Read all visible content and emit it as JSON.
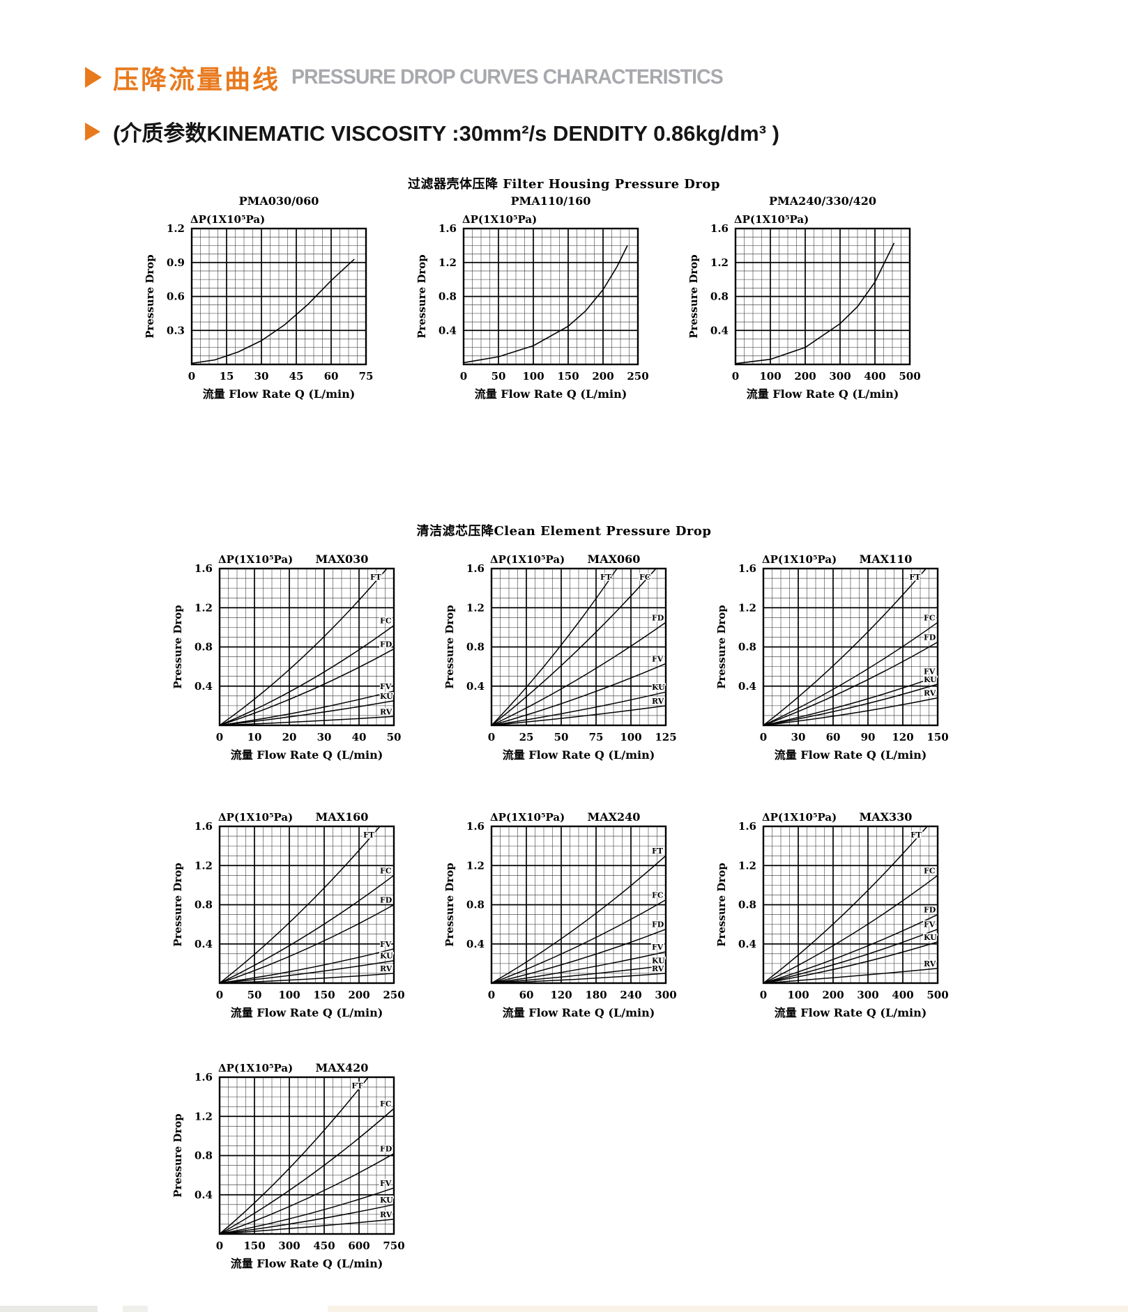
{
  "page": {
    "header": {
      "title_cn": "压降流量曲线",
      "title_en": "PRESSURE DROP CURVES CHARACTERISTICS"
    },
    "subtitle": "(介质参数KINEMATIC VISCOSITY :30mm²/s DENDITY 0.86kg/dm³ )",
    "section1_title": "过滤器壳体压降 Filter Housing Pressure Drop",
    "section2_title": "清洁滤芯压降Clean Element Pressure Drop",
    "accent_color": "#e87a1e",
    "header_en_color": "#a7a9ac"
  },
  "chart_defaults": {
    "dp_label": "ΔP(1X10⁵Pa)",
    "ylabel": "Pressure Drop",
    "xlabel": "流量 Flow Rate  Q (L/min)"
  },
  "chart_data": [
    {
      "id": "PMA030-060",
      "row": "r1",
      "group": "housing",
      "type": "line",
      "title": "PMA030/060",
      "xmax": 75,
      "ymax": 1.2,
      "xticks": [
        0,
        15,
        30,
        45,
        60,
        75
      ],
      "yticks": [
        0.3,
        0.6,
        0.9,
        1.2
      ],
      "series": [
        {
          "name": "",
          "points": [
            [
              0,
              0.01
            ],
            [
              10,
              0.04
            ],
            [
              20,
              0.11
            ],
            [
              30,
              0.21
            ],
            [
              40,
              0.35
            ],
            [
              50,
              0.53
            ],
            [
              60,
              0.74
            ],
            [
              70,
              0.93
            ]
          ]
        }
      ]
    },
    {
      "id": "PMA110-160",
      "row": "r1",
      "group": "housing",
      "type": "line",
      "title": "PMA110/160",
      "xmax": 250,
      "ymax": 1.6,
      "xticks": [
        0,
        50,
        100,
        150,
        200,
        250
      ],
      "yticks": [
        0.4,
        0.8,
        1.2,
        1.6
      ],
      "series": [
        {
          "name": "",
          "points": [
            [
              0,
              0.02
            ],
            [
              50,
              0.09
            ],
            [
              100,
              0.22
            ],
            [
              150,
              0.45
            ],
            [
              175,
              0.63
            ],
            [
              200,
              0.88
            ],
            [
              220,
              1.15
            ],
            [
              235,
              1.4
            ]
          ]
        }
      ]
    },
    {
      "id": "PMA240-330-420",
      "row": "r1",
      "group": "housing",
      "type": "line",
      "title": "PMA240/330/420",
      "xmax": 500,
      "ymax": 1.6,
      "xticks": [
        0,
        100,
        200,
        300,
        400,
        500
      ],
      "yticks": [
        0.4,
        0.8,
        1.2,
        1.6
      ],
      "series": [
        {
          "name": "",
          "points": [
            [
              0,
              0.01
            ],
            [
              100,
              0.06
            ],
            [
              200,
              0.2
            ],
            [
              300,
              0.48
            ],
            [
              350,
              0.68
            ],
            [
              400,
              0.97
            ],
            [
              455,
              1.43
            ]
          ]
        }
      ]
    },
    {
      "id": "MAX030",
      "row": "r2",
      "group": "element",
      "type": "line",
      "title": "MAX030",
      "xmax": 50,
      "ymax": 1.6,
      "xticks": [
        0,
        10,
        20,
        30,
        40,
        50
      ],
      "yticks": [
        0.4,
        0.8,
        1.2,
        1.6
      ],
      "series": [
        {
          "name": "FT",
          "points": [
            [
              0,
              0
            ],
            [
              24,
              0.7
            ],
            [
              48,
              1.6
            ]
          ]
        },
        {
          "name": "FC",
          "points": [
            [
              0,
              0
            ],
            [
              25,
              0.44
            ],
            [
              50,
              1.02
            ]
          ]
        },
        {
          "name": "FD",
          "points": [
            [
              0,
              0
            ],
            [
              25,
              0.34
            ],
            [
              50,
              0.78
            ]
          ]
        },
        {
          "name": "FV",
          "points": [
            [
              0,
              0
            ],
            [
              25,
              0.15
            ],
            [
              50,
              0.35
            ]
          ]
        },
        {
          "name": "KU",
          "points": [
            [
              0,
              0
            ],
            [
              25,
              0.11
            ],
            [
              50,
              0.25
            ]
          ]
        },
        {
          "name": "RV",
          "points": [
            [
              0,
              0
            ],
            [
              25,
              0.04
            ],
            [
              50,
              0.09
            ]
          ]
        }
      ]
    },
    {
      "id": "MAX060",
      "row": "r2",
      "group": "element",
      "type": "line",
      "title": "MAX060",
      "xmax": 125,
      "ymax": 1.6,
      "xticks": [
        0,
        25,
        50,
        75,
        100,
        125
      ],
      "yticks": [
        0.4,
        0.8,
        1.2,
        1.6
      ],
      "series": [
        {
          "name": "FT",
          "points": [
            [
              0,
              0
            ],
            [
              45,
              0.73
            ],
            [
              90,
              1.6
            ]
          ]
        },
        {
          "name": "FC",
          "points": [
            [
              0,
              0
            ],
            [
              59,
              0.73
            ],
            [
              118,
              1.6
            ]
          ]
        },
        {
          "name": "FD",
          "points": [
            [
              0,
              0
            ],
            [
              62,
              0.47
            ],
            [
              125,
              1.05
            ]
          ]
        },
        {
          "name": "FV",
          "points": [
            [
              0,
              0
            ],
            [
              62,
              0.28
            ],
            [
              125,
              0.63
            ]
          ]
        },
        {
          "name": "KU",
          "points": [
            [
              0,
              0
            ],
            [
              62,
              0.15
            ],
            [
              125,
              0.34
            ]
          ]
        },
        {
          "name": "RV",
          "points": [
            [
              0,
              0
            ],
            [
              62,
              0.09
            ],
            [
              125,
              0.2
            ]
          ]
        }
      ]
    },
    {
      "id": "MAX110",
      "row": "r2",
      "group": "element",
      "type": "line",
      "title": "MAX110",
      "xmax": 150,
      "ymax": 1.6,
      "xticks": [
        0,
        30,
        60,
        90,
        120,
        150
      ],
      "yticks": [
        0.4,
        0.8,
        1.2,
        1.6
      ],
      "series": [
        {
          "name": "FT",
          "points": [
            [
              0,
              0
            ],
            [
              70,
              0.72
            ],
            [
              140,
              1.6
            ]
          ]
        },
        {
          "name": "FC",
          "points": [
            [
              0,
              0
            ],
            [
              75,
              0.47
            ],
            [
              150,
              1.05
            ]
          ]
        },
        {
          "name": "FD",
          "points": [
            [
              0,
              0
            ],
            [
              75,
              0.38
            ],
            [
              150,
              0.85
            ]
          ]
        },
        {
          "name": "FV",
          "points": [
            [
              0,
              0
            ],
            [
              75,
              0.22
            ],
            [
              150,
              0.5
            ]
          ]
        },
        {
          "name": "KU",
          "points": [
            [
              0,
              0
            ],
            [
              75,
              0.18
            ],
            [
              150,
              0.42
            ]
          ]
        },
        {
          "name": "RV",
          "points": [
            [
              0,
              0
            ],
            [
              75,
              0.12
            ],
            [
              150,
              0.28
            ]
          ]
        }
      ]
    },
    {
      "id": "MAX160",
      "row": "r3",
      "group": "element",
      "type": "line",
      "title": "MAX160",
      "xmax": 250,
      "ymax": 1.6,
      "xticks": [
        0,
        50,
        100,
        150,
        200,
        250
      ],
      "yticks": [
        0.4,
        0.8,
        1.2,
        1.6
      ],
      "series": [
        {
          "name": "FT",
          "points": [
            [
              0,
              0
            ],
            [
              115,
              0.72
            ],
            [
              230,
              1.6
            ]
          ]
        },
        {
          "name": "FC",
          "points": [
            [
              0,
              0
            ],
            [
              125,
              0.49
            ],
            [
              250,
              1.1
            ]
          ]
        },
        {
          "name": "FD",
          "points": [
            [
              0,
              0
            ],
            [
              125,
              0.35
            ],
            [
              250,
              0.8
            ]
          ]
        },
        {
          "name": "FV",
          "points": [
            [
              0,
              0
            ],
            [
              125,
              0.15
            ],
            [
              250,
              0.35
            ]
          ]
        },
        {
          "name": "KU",
          "points": [
            [
              0,
              0
            ],
            [
              125,
              0.1
            ],
            [
              250,
              0.23
            ]
          ]
        },
        {
          "name": "RV",
          "points": [
            [
              0,
              0
            ],
            [
              125,
              0.04
            ],
            [
              250,
              0.1
            ]
          ]
        }
      ]
    },
    {
      "id": "MAX240",
      "row": "r3",
      "group": "element",
      "type": "line",
      "title": "MAX240",
      "xmax": 300,
      "ymax": 1.6,
      "xticks": [
        0,
        60,
        120,
        180,
        240,
        300
      ],
      "yticks": [
        0.4,
        0.8,
        1.2,
        1.6
      ],
      "series": [
        {
          "name": "FT",
          "points": [
            [
              0,
              0
            ],
            [
              150,
              0.58
            ],
            [
              300,
              1.3
            ]
          ]
        },
        {
          "name": "FC",
          "points": [
            [
              0,
              0
            ],
            [
              150,
              0.38
            ],
            [
              300,
              0.85
            ]
          ]
        },
        {
          "name": "FD",
          "points": [
            [
              0,
              0
            ],
            [
              150,
              0.24
            ],
            [
              300,
              0.55
            ]
          ]
        },
        {
          "name": "FV",
          "points": [
            [
              0,
              0
            ],
            [
              150,
              0.14
            ],
            [
              300,
              0.32
            ]
          ]
        },
        {
          "name": "KU",
          "points": [
            [
              0,
              0
            ],
            [
              150,
              0.08
            ],
            [
              300,
              0.18
            ]
          ]
        },
        {
          "name": "RV",
          "points": [
            [
              0,
              0
            ],
            [
              150,
              0.04
            ],
            [
              300,
              0.1
            ]
          ]
        }
      ]
    },
    {
      "id": "MAX330",
      "row": "r3",
      "group": "element",
      "type": "line",
      "title": "MAX330",
      "xmax": 500,
      "ymax": 1.6,
      "xticks": [
        0,
        100,
        200,
        300,
        400,
        500
      ],
      "yticks": [
        0.4,
        0.8,
        1.2,
        1.6
      ],
      "series": [
        {
          "name": "FT",
          "points": [
            [
              0,
              0
            ],
            [
              235,
              0.72
            ],
            [
              470,
              1.6
            ]
          ]
        },
        {
          "name": "FC",
          "points": [
            [
              0,
              0
            ],
            [
              250,
              0.49
            ],
            [
              500,
              1.1
            ]
          ]
        },
        {
          "name": "FD",
          "points": [
            [
              0,
              0
            ],
            [
              250,
              0.31
            ],
            [
              500,
              0.7
            ]
          ]
        },
        {
          "name": "FV",
          "points": [
            [
              0,
              0
            ],
            [
              250,
              0.24
            ],
            [
              500,
              0.55
            ]
          ]
        },
        {
          "name": "KU",
          "points": [
            [
              0,
              0
            ],
            [
              250,
              0.18
            ],
            [
              500,
              0.42
            ]
          ]
        },
        {
          "name": "RV",
          "points": [
            [
              0,
              0
            ],
            [
              250,
              0.07
            ],
            [
              500,
              0.15
            ]
          ]
        }
      ]
    },
    {
      "id": "MAX420",
      "row": "r4",
      "group": "element",
      "type": "line",
      "title": "MAX420",
      "xmax": 750,
      "ymax": 1.6,
      "xticks": [
        0,
        150,
        300,
        450,
        600,
        750
      ],
      "yticks": [
        0.4,
        0.8,
        1.2,
        1.6
      ],
      "series": [
        {
          "name": "FT",
          "points": [
            [
              0,
              0
            ],
            [
              320,
              0.72
            ],
            [
              640,
              1.6
            ]
          ]
        },
        {
          "name": "FC",
          "points": [
            [
              0,
              0
            ],
            [
              375,
              0.57
            ],
            [
              750,
              1.28
            ]
          ]
        },
        {
          "name": "FD",
          "points": [
            [
              0,
              0
            ],
            [
              375,
              0.36
            ],
            [
              750,
              0.82
            ]
          ]
        },
        {
          "name": "FV",
          "points": [
            [
              0,
              0
            ],
            [
              375,
              0.2
            ],
            [
              750,
              0.47
            ]
          ]
        },
        {
          "name": "KU",
          "points": [
            [
              0,
              0
            ],
            [
              375,
              0.13
            ],
            [
              750,
              0.3
            ]
          ]
        },
        {
          "name": "RV",
          "points": [
            [
              0,
              0
            ],
            [
              375,
              0.07
            ],
            [
              750,
              0.15
            ]
          ]
        }
      ]
    }
  ]
}
